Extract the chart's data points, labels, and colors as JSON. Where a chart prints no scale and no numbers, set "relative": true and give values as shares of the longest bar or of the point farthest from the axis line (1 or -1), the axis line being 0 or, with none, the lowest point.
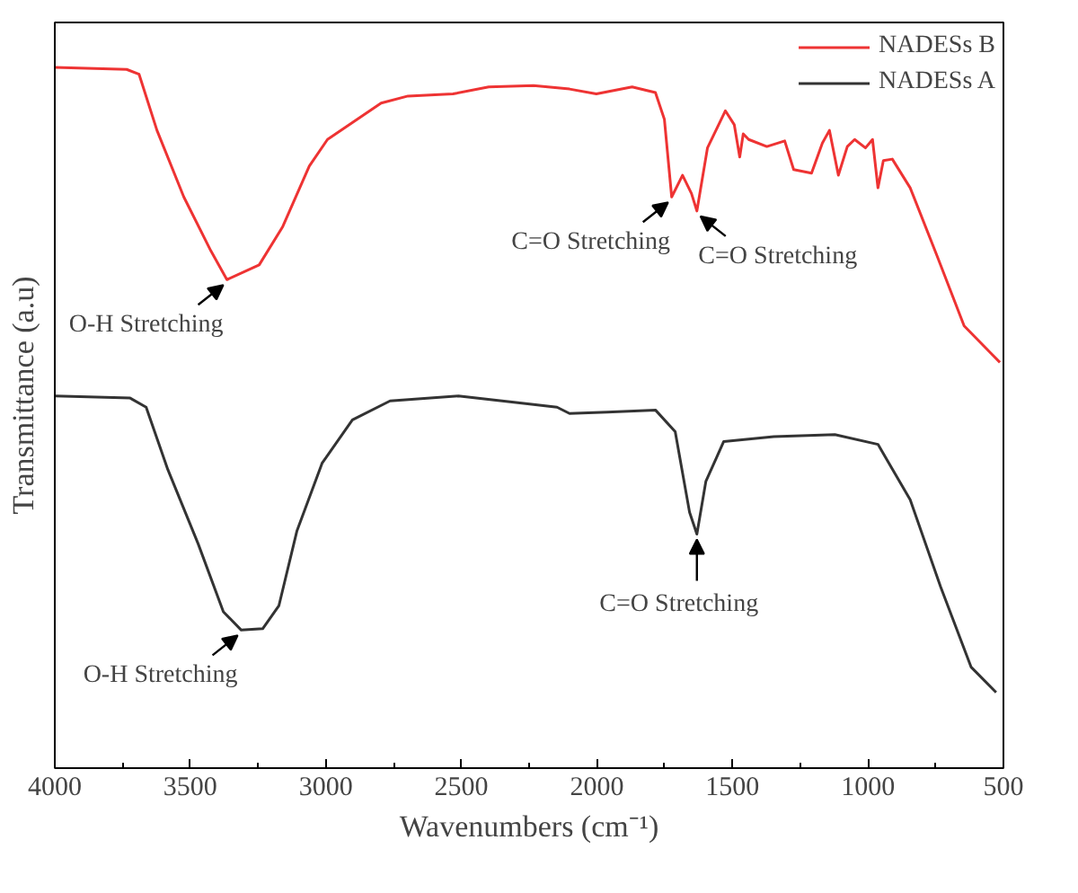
{
  "chart_data": {
    "type": "line",
    "relative": true,
    "xlabel": "Wavenumbers (cm⁻¹)",
    "ylabel": "Transmittance (a.u)",
    "xlim": [
      4000,
      500
    ],
    "xticks": [
      4000,
      3500,
      3000,
      2500,
      2000,
      1500,
      1000,
      500
    ],
    "legend": "top right",
    "grid": false,
    "line_style": "solid",
    "marker": "none",
    "series": [
      {
        "name": "NADESs B",
        "color": "#ee3333",
        "x": [
          4000,
          3735,
          3689,
          3623,
          3524,
          3424,
          3365,
          3246,
          3160,
          3061,
          2994,
          2796,
          2697,
          2531,
          2399,
          2234,
          2101,
          2002,
          1870,
          1784,
          1751,
          1724,
          1684,
          1651,
          1631,
          1592,
          1526,
          1493,
          1473,
          1460,
          1440,
          1373,
          1307,
          1274,
          1208,
          1168,
          1142,
          1109,
          1076,
          1049,
          1009,
          983,
          963,
          943,
          910,
          844,
          745,
          645,
          546,
          513
        ],
        "values": [
          1.0,
          0.997,
          0.99,
          0.91,
          0.815,
          0.738,
          0.697,
          0.718,
          0.772,
          0.859,
          0.897,
          0.949,
          0.959,
          0.962,
          0.972,
          0.974,
          0.969,
          0.962,
          0.972,
          0.964,
          0.926,
          0.815,
          0.846,
          0.82,
          0.795,
          0.885,
          0.938,
          0.918,
          0.872,
          0.905,
          0.897,
          0.887,
          0.895,
          0.854,
          0.849,
          0.892,
          0.91,
          0.846,
          0.887,
          0.897,
          0.885,
          0.897,
          0.828,
          0.867,
          0.869,
          0.828,
          0.731,
          0.631,
          0.592,
          0.579
        ]
      },
      {
        "name": "NADESs A",
        "color": "#333333",
        "x": [
          4000,
          3722,
          3663,
          3583,
          3471,
          3378,
          3312,
          3233,
          3173,
          3107,
          3014,
          2902,
          2763,
          2511,
          2306,
          2147,
          2101,
          1962,
          1784,
          1711,
          1658,
          1631,
          1598,
          1532,
          1347,
          1122,
          963,
          844,
          732,
          619,
          527
        ],
        "values": [
          0.531,
          0.528,
          0.515,
          0.426,
          0.32,
          0.223,
          0.197,
          0.199,
          0.232,
          0.338,
          0.435,
          0.497,
          0.524,
          0.531,
          0.522,
          0.515,
          0.506,
          0.508,
          0.511,
          0.48,
          0.365,
          0.334,
          0.409,
          0.466,
          0.473,
          0.476,
          0.462,
          0.383,
          0.259,
          0.144,
          0.108
        ]
      }
    ],
    "annotations": [
      {
        "text": "O-H Stretching",
        "x": 3365,
        "y": 0.697
      },
      {
        "text": "C=O Stretching",
        "x": 1724,
        "y": 0.815
      },
      {
        "text": "C=O Stretching",
        "x": 1631,
        "y": 0.795
      },
      {
        "text": "O-H Stretching",
        "x": 3312,
        "y": 0.197
      },
      {
        "text": "C=O Stretching",
        "x": 1631,
        "y": 0.334
      }
    ]
  }
}
